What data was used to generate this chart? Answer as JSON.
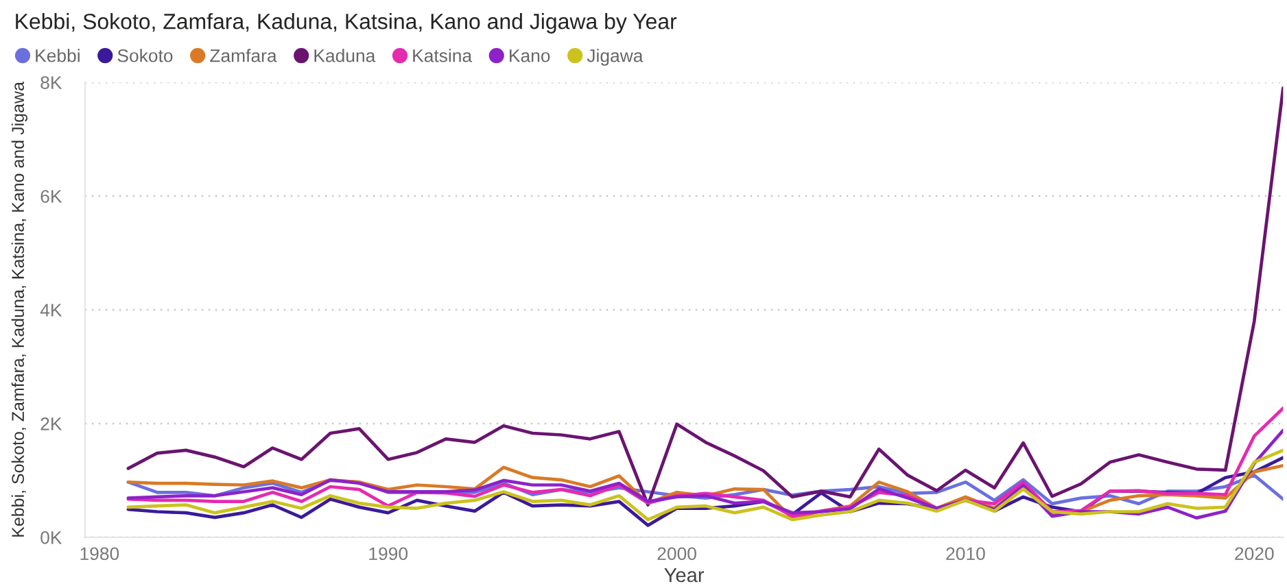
{
  "chart_data": {
    "type": "line",
    "title": "Kebbi, Sokoto, Zamfara, Kaduna, Katsina, Kano and Jigawa by Year",
    "xlabel": "Year",
    "ylabel": "Kebbi, Sokoto, Zamfara, Kaduna, Katsina, Kano and Jigawa",
    "x": [
      1981,
      1982,
      1983,
      1984,
      1985,
      1986,
      1987,
      1988,
      1989,
      1990,
      1991,
      1992,
      1993,
      1994,
      1995,
      1996,
      1997,
      1998,
      1999,
      2000,
      2001,
      2002,
      2003,
      2004,
      2005,
      2006,
      2007,
      2008,
      2009,
      2010,
      2011,
      2012,
      2013,
      2014,
      2015,
      2016,
      2017,
      2018,
      2019,
      2020,
      2021
    ],
    "xlim": [
      1979.5,
      2021
    ],
    "xticks": [
      1980,
      1990,
      2000,
      2010,
      2020
    ],
    "ylim": [
      0,
      8000
    ],
    "yticks": [
      {
        "value": 0,
        "label": "0K"
      },
      {
        "value": 2000,
        "label": "2K"
      },
      {
        "value": 4000,
        "label": "4K"
      },
      {
        "value": 6000,
        "label": "6K"
      },
      {
        "value": 8000,
        "label": "8K"
      }
    ],
    "grid": "y",
    "legend": "top left",
    "line_style": "solid",
    "series": [
      {
        "name": "Kebbi",
        "color": "#6a70e0",
        "values": [
          970,
          790,
          790,
          730,
          870,
          950,
          790,
          1000,
          970,
          790,
          790,
          790,
          790,
          950,
          750,
          840,
          790,
          870,
          800,
          730,
          690,
          750,
          840,
          740,
          810,
          840,
          890,
          770,
          790,
          970,
          650,
          1010,
          590,
          690,
          730,
          590,
          810,
          810,
          890,
          1090,
          670
        ]
      },
      {
        "name": "Sokoto",
        "color": "#3b1a9a",
        "values": [
          490,
          450,
          430,
          350,
          430,
          570,
          350,
          670,
          530,
          430,
          650,
          550,
          460,
          790,
          550,
          570,
          550,
          630,
          210,
          510,
          510,
          550,
          630,
          400,
          780,
          450,
          600,
          590,
          490,
          690,
          460,
          710,
          530,
          450,
          810,
          810,
          790,
          770,
          1050,
          1150,
          1400
        ]
      },
      {
        "name": "Zamfara",
        "color": "#d97a26",
        "values": [
          970,
          950,
          950,
          930,
          920,
          990,
          870,
          1010,
          970,
          840,
          920,
          890,
          850,
          1230,
          1050,
          1010,
          890,
          1080,
          600,
          790,
          730,
          850,
          840,
          330,
          460,
          550,
          970,
          800,
          510,
          710,
          510,
          930,
          410,
          450,
          650,
          730,
          750,
          730,
          690,
          1150,
          1260
        ]
      },
      {
        "name": "Kaduna",
        "color": "#6a1470",
        "values": [
          1210,
          1480,
          1530,
          1410,
          1240,
          1570,
          1370,
          1830,
          1910,
          1370,
          1490,
          1730,
          1670,
          1960,
          1830,
          1800,
          1730,
          1860,
          570,
          1990,
          1670,
          1430,
          1170,
          710,
          810,
          710,
          1550,
          1090,
          820,
          1180,
          870,
          1660,
          720,
          940,
          1320,
          1450,
          1320,
          1200,
          1180,
          3800,
          7900
        ]
      },
      {
        "name": "Katsina",
        "color": "#e52bb0",
        "values": [
          670,
          650,
          650,
          630,
          630,
          790,
          630,
          890,
          840,
          550,
          790,
          780,
          720,
          920,
          790,
          840,
          730,
          920,
          600,
          730,
          770,
          710,
          650,
          370,
          460,
          530,
          790,
          730,
          510,
          650,
          590,
          970,
          450,
          470,
          810,
          820,
          770,
          770,
          750,
          1780,
          2270
        ]
      },
      {
        "name": "Kano",
        "color": "#8d22c8",
        "values": [
          690,
          710,
          730,
          730,
          800,
          870,
          750,
          1010,
          950,
          800,
          800,
          800,
          830,
          1000,
          920,
          920,
          810,
          950,
          630,
          710,
          730,
          600,
          630,
          430,
          450,
          500,
          850,
          690,
          510,
          650,
          490,
          910,
          370,
          450,
          450,
          410,
          530,
          340,
          460,
          1300,
          1880
        ]
      },
      {
        "name": "Jigawa",
        "color": "#ccc21e",
        "values": [
          530,
          550,
          570,
          430,
          530,
          630,
          510,
          730,
          600,
          530,
          510,
          600,
          650,
          800,
          630,
          650,
          570,
          730,
          310,
          530,
          550,
          430,
          530,
          310,
          390,
          450,
          650,
          600,
          460,
          650,
          460,
          850,
          450,
          410,
          450,
          450,
          590,
          510,
          530,
          1320,
          1530
        ]
      }
    ]
  }
}
